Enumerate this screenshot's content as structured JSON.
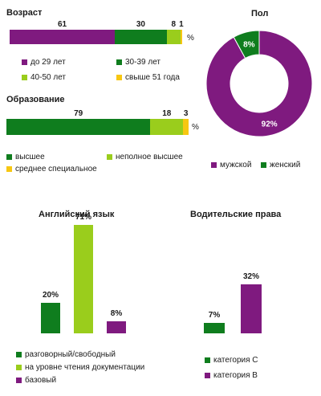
{
  "colors": {
    "purple": "#7f1a7f",
    "green": "#0f7d1e",
    "lime": "#9acd1c",
    "yellow": "#f7c712"
  },
  "chart_data": [
    {
      "id": "age",
      "type": "bar",
      "stacked": true,
      "orientation": "horizontal",
      "title": "Возраст",
      "unit": "%",
      "series": [
        {
          "name": "до 29 лет",
          "values": [
            61
          ],
          "color": "#7f1a7f"
        },
        {
          "name": "30-39 лет",
          "values": [
            30
          ],
          "color": "#0f7d1e"
        },
        {
          "name": "40-50 лет",
          "values": [
            8
          ],
          "color": "#9acd1c"
        },
        {
          "name": "свыше 51 года",
          "values": [
            1
          ],
          "color": "#f7c712"
        }
      ]
    },
    {
      "id": "education",
      "type": "bar",
      "stacked": true,
      "orientation": "horizontal",
      "title": "Образование",
      "unit": "%",
      "series": [
        {
          "name": "высшее",
          "values": [
            79
          ],
          "color": "#0f7d1e"
        },
        {
          "name": "неполное высшее",
          "values": [
            18
          ],
          "color": "#9acd1c"
        },
        {
          "name": "среднее специальное",
          "values": [
            3
          ],
          "color": "#f7c712"
        }
      ]
    },
    {
      "id": "gender",
      "type": "pie",
      "donut": true,
      "title": "Пол",
      "slices": [
        {
          "name": "мужской",
          "value": 92,
          "label": "92%",
          "color": "#7f1a7f"
        },
        {
          "name": "женский",
          "value": 8,
          "label": "8%",
          "color": "#0f7d1e"
        }
      ]
    },
    {
      "id": "english",
      "type": "bar",
      "title": "Английский язык",
      "ylim": [
        0,
        71
      ],
      "bars": [
        {
          "name": "разговорный/свободный",
          "value": 20,
          "label": "20%",
          "color": "#0f7d1e"
        },
        {
          "name": "на уровне чтения документации",
          "value": 71,
          "label": "71%",
          "color": "#9acd1c"
        },
        {
          "name": "базовый",
          "value": 8,
          "label": "8%",
          "color": "#7f1a7f"
        }
      ]
    },
    {
      "id": "license",
      "type": "bar",
      "title": "Водительские права",
      "ylim": [
        0,
        71
      ],
      "bars": [
        {
          "name": "категория С",
          "value": 7,
          "label": "7%",
          "color": "#0f7d1e"
        },
        {
          "name": "категория В",
          "value": 32,
          "label": "32%",
          "color": "#7f1a7f"
        }
      ]
    }
  ]
}
